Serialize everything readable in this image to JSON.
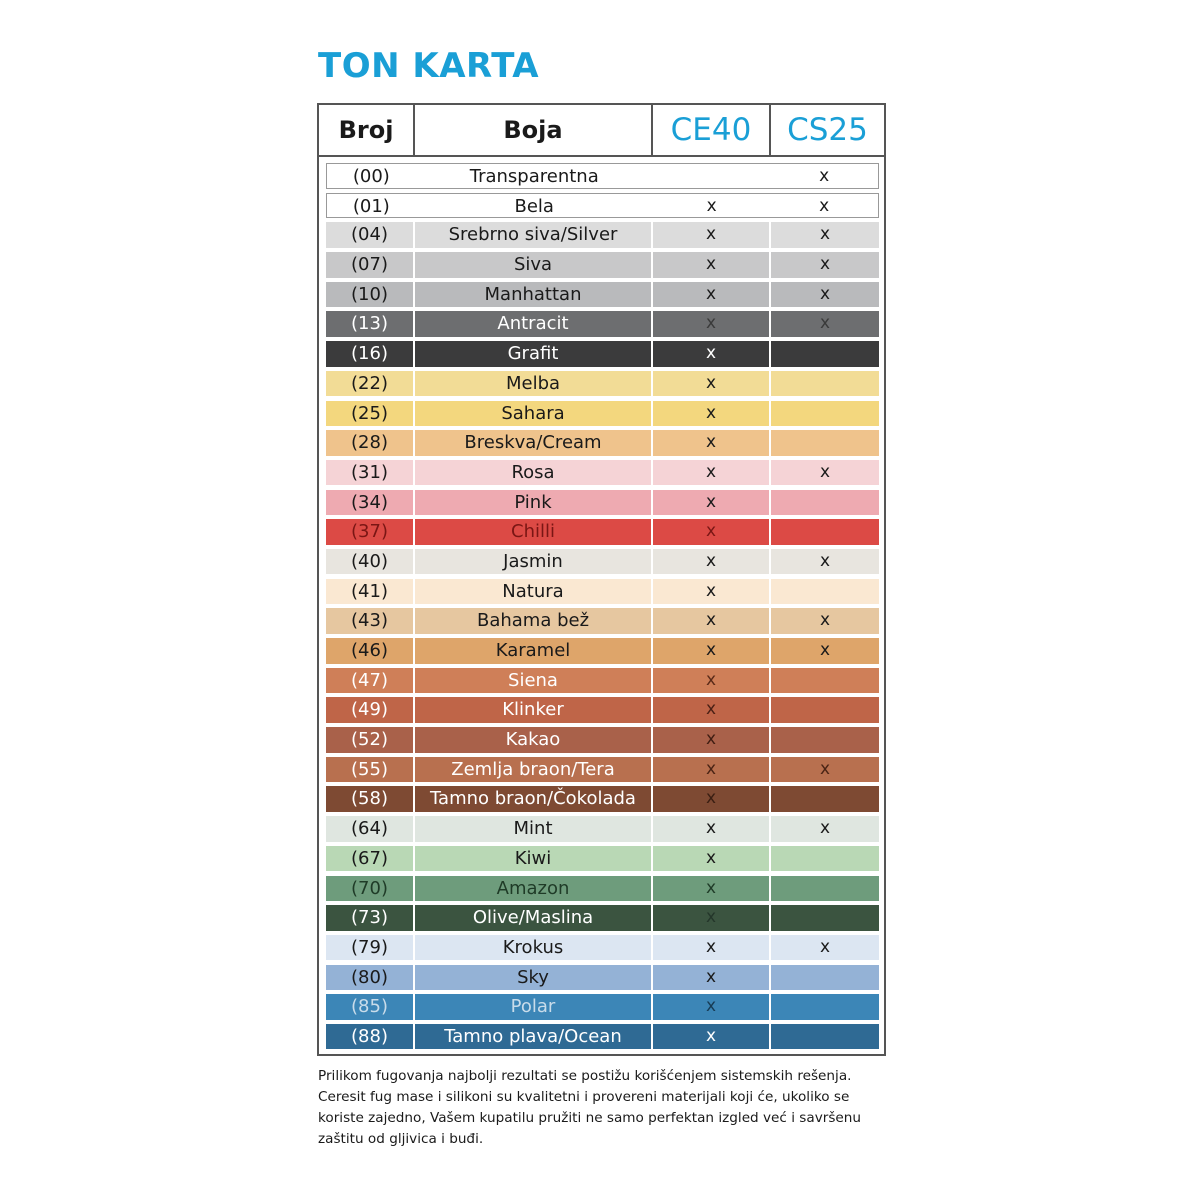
{
  "title": "TON KARTA",
  "headers": {
    "broj": "Broj",
    "boja": "Boja",
    "ce40": "CE40",
    "cs25": "CS25"
  },
  "rows": [
    {
      "num": "(00)",
      "name": "Transparentna",
      "ce40": "",
      "cs25": "x",
      "bg": "#ffffff",
      "fg": "#1a1a1a",
      "bordered": true
    },
    {
      "num": "(01)",
      "name": "Bela",
      "ce40": "x",
      "cs25": "x",
      "bg": "#ffffff",
      "fg": "#1a1a1a",
      "bordered": true
    },
    {
      "num": "(04)",
      "name": "Srebrno siva/Silver",
      "ce40": "x",
      "cs25": "x",
      "bg": "#dcdcdc",
      "fg": "#1a1a1a"
    },
    {
      "num": "(07)",
      "name": "Siva",
      "ce40": "x",
      "cs25": "x",
      "bg": "#c8c8c9",
      "fg": "#1a1a1a"
    },
    {
      "num": "(10)",
      "name": "Manhattan",
      "ce40": "x",
      "cs25": "x",
      "bg": "#b9babc",
      "fg": "#1a1a1a"
    },
    {
      "num": "(13)",
      "name": "Antracit",
      "ce40": "x",
      "cs25": "x",
      "bg": "#6d6e70",
      "fg": "#ffffff",
      "markfg": "#3a3a3a"
    },
    {
      "num": "(16)",
      "name": "Grafit",
      "ce40": "x",
      "cs25": "",
      "bg": "#3b3b3c",
      "fg": "#ffffff",
      "markfg": "#ffffff"
    },
    {
      "num": "(22)",
      "name": "Melba",
      "ce40": "x",
      "cs25": "",
      "bg": "#f2dc96",
      "fg": "#1a1a1a"
    },
    {
      "num": "(25)",
      "name": "Sahara",
      "ce40": "x",
      "cs25": "",
      "bg": "#f3d77e",
      "fg": "#1a1a1a"
    },
    {
      "num": "(28)",
      "name": "Breskva/Cream",
      "ce40": "x",
      "cs25": "",
      "bg": "#efc38c",
      "fg": "#1a1a1a"
    },
    {
      "num": "(31)",
      "name": "Rosa",
      "ce40": "x",
      "cs25": "x",
      "bg": "#f5d3d6",
      "fg": "#1a1a1a"
    },
    {
      "num": "(34)",
      "name": "Pink",
      "ce40": "x",
      "cs25": "",
      "bg": "#eeaab1",
      "fg": "#1a1a1a"
    },
    {
      "num": "(37)",
      "name": "Chilli",
      "ce40": "x",
      "cs25": "",
      "bg": "#dc4a45",
      "fg": "#7a1614",
      "markfg": "#7a1614"
    },
    {
      "num": "(40)",
      "name": "Jasmin",
      "ce40": "x",
      "cs25": "x",
      "bg": "#e8e5df",
      "fg": "#1a1a1a"
    },
    {
      "num": "(41)",
      "name": "Natura",
      "ce40": "x",
      "cs25": "",
      "bg": "#fae8d2",
      "fg": "#1a1a1a"
    },
    {
      "num": "(43)",
      "name": "Bahama bež",
      "ce40": "x",
      "cs25": "x",
      "bg": "#e6c7a0",
      "fg": "#1a1a1a"
    },
    {
      "num": "(46)",
      "name": "Karamel",
      "ce40": "x",
      "cs25": "x",
      "bg": "#dea56a",
      "fg": "#1a1a1a"
    },
    {
      "num": "(47)",
      "name": "Siena",
      "ce40": "x",
      "cs25": "",
      "bg": "#cf7f58",
      "fg": "#ffffff",
      "markfg": "#5a2a18"
    },
    {
      "num": "(49)",
      "name": "Klinker",
      "ce40": "x",
      "cs25": "",
      "bg": "#bf6548",
      "fg": "#ffffff",
      "markfg": "#4a2015"
    },
    {
      "num": "(52)",
      "name": "Kakao",
      "ce40": "x",
      "cs25": "",
      "bg": "#a9614a",
      "fg": "#ffffff",
      "markfg": "#3f1d12"
    },
    {
      "num": "(55)",
      "name": "Zemlja braon/Tera",
      "ce40": "x",
      "cs25": "x",
      "bg": "#b8704f",
      "fg": "#ffffff",
      "markfg": "#4a2415"
    },
    {
      "num": "(58)",
      "name": "Tamno braon/Čokolada",
      "ce40": "x",
      "cs25": "",
      "bg": "#7e4a33",
      "fg": "#ffffff",
      "markfg": "#3a1e12"
    },
    {
      "num": "(64)",
      "name": "Mint",
      "ce40": "x",
      "cs25": "x",
      "bg": "#dfe6e0",
      "fg": "#1a1a1a"
    },
    {
      "num": "(67)",
      "name": "Kiwi",
      "ce40": "x",
      "cs25": "",
      "bg": "#b9d8b5",
      "fg": "#1a1a1a"
    },
    {
      "num": "(70)",
      "name": "Amazon",
      "ce40": "x",
      "cs25": "",
      "bg": "#6e9c7c",
      "fg": "#1f3b27",
      "markfg": "#1f3b27"
    },
    {
      "num": "(73)",
      "name": "Olive/Maslina",
      "ce40": "x",
      "cs25": "",
      "bg": "#3b5440",
      "fg": "#ffffff",
      "markfg": "#24362a"
    },
    {
      "num": "(79)",
      "name": "Krokus",
      "ce40": "x",
      "cs25": "x",
      "bg": "#dce6f2",
      "fg": "#1a1a1a"
    },
    {
      "num": "(80)",
      "name": "Sky",
      "ce40": "x",
      "cs25": "",
      "bg": "#94b2d6",
      "fg": "#1a1a1a"
    },
    {
      "num": "(85)",
      "name": "Polar",
      "ce40": "x",
      "cs25": "",
      "bg": "#3c86b7",
      "fg": "#c9dcea",
      "markfg": "#173b54"
    },
    {
      "num": "(88)",
      "name": "Tamno plava/Ocean",
      "ce40": "x",
      "cs25": "",
      "bg": "#2f6a94",
      "fg": "#ffffff",
      "markfg": "#ffffff"
    }
  ],
  "note": "Prilikom fugovanja najbolji rezultati se postižu korišćenjem sistemskih rešenja. Ceresit fug mase i silikoni su kvalitetni i provereni materijali koji će, ukoliko se koriste zajedno, Vašem kupatilu pružiti ne samo perfektan izgled već i savršenu zaštitu od gljivica i buđi."
}
